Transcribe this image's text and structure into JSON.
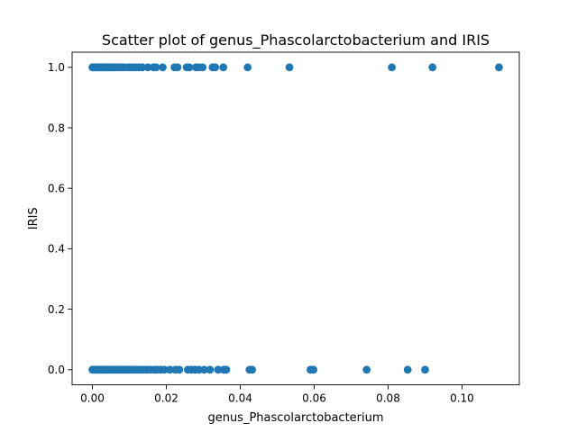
{
  "chart_data": {
    "type": "scatter",
    "title": "Scatter plot of genus_Phascolarctobacterium and IRIS",
    "xlabel": "genus_Phascolarctobacterium",
    "ylabel": "IRIS",
    "xlim": [
      -0.0055,
      0.1155
    ],
    "ylim": [
      -0.05,
      1.05
    ],
    "xticks": [
      0.0,
      0.02,
      0.04,
      0.06,
      0.08,
      0.1
    ],
    "xtick_labels": [
      "0.00",
      "0.02",
      "0.04",
      "0.06",
      "0.08",
      "0.10"
    ],
    "yticks": [
      0.0,
      0.2,
      0.4,
      0.6,
      0.8,
      1.0
    ],
    "ytick_labels": [
      "0.0",
      "0.2",
      "0.4",
      "0.6",
      "0.8",
      "1.0"
    ],
    "grid": false,
    "marker_color": "#1f77b4",
    "points": [
      {
        "x": 0.0,
        "y": 1
      },
      {
        "x": 0.0003,
        "y": 1
      },
      {
        "x": 0.0006,
        "y": 1
      },
      {
        "x": 0.001,
        "y": 1
      },
      {
        "x": 0.0014,
        "y": 1
      },
      {
        "x": 0.0018,
        "y": 1
      },
      {
        "x": 0.0022,
        "y": 1
      },
      {
        "x": 0.0026,
        "y": 1
      },
      {
        "x": 0.003,
        "y": 1
      },
      {
        "x": 0.0034,
        "y": 1
      },
      {
        "x": 0.0038,
        "y": 1
      },
      {
        "x": 0.0042,
        "y": 1
      },
      {
        "x": 0.0046,
        "y": 1
      },
      {
        "x": 0.005,
        "y": 1
      },
      {
        "x": 0.0055,
        "y": 1
      },
      {
        "x": 0.006,
        "y": 1
      },
      {
        "x": 0.0066,
        "y": 1
      },
      {
        "x": 0.0072,
        "y": 1
      },
      {
        "x": 0.0078,
        "y": 1
      },
      {
        "x": 0.0085,
        "y": 1
      },
      {
        "x": 0.0095,
        "y": 1
      },
      {
        "x": 0.0102,
        "y": 1
      },
      {
        "x": 0.011,
        "y": 1
      },
      {
        "x": 0.0118,
        "y": 1
      },
      {
        "x": 0.0125,
        "y": 1
      },
      {
        "x": 0.0135,
        "y": 1
      },
      {
        "x": 0.015,
        "y": 1
      },
      {
        "x": 0.0165,
        "y": 1
      },
      {
        "x": 0.0172,
        "y": 1
      },
      {
        "x": 0.019,
        "y": 1
      },
      {
        "x": 0.0222,
        "y": 1
      },
      {
        "x": 0.023,
        "y": 1
      },
      {
        "x": 0.0255,
        "y": 1
      },
      {
        "x": 0.0262,
        "y": 1
      },
      {
        "x": 0.028,
        "y": 1
      },
      {
        "x": 0.0288,
        "y": 1
      },
      {
        "x": 0.0298,
        "y": 1
      },
      {
        "x": 0.0325,
        "y": 1
      },
      {
        "x": 0.0332,
        "y": 1
      },
      {
        "x": 0.0354,
        "y": 1
      },
      {
        "x": 0.042,
        "y": 1
      },
      {
        "x": 0.0533,
        "y": 1
      },
      {
        "x": 0.081,
        "y": 1
      },
      {
        "x": 0.092,
        "y": 1
      },
      {
        "x": 0.11,
        "y": 1
      },
      {
        "x": 0.0,
        "y": 0
      },
      {
        "x": 0.0004,
        "y": 0
      },
      {
        "x": 0.0008,
        "y": 0
      },
      {
        "x": 0.0012,
        "y": 0
      },
      {
        "x": 0.0016,
        "y": 0
      },
      {
        "x": 0.002,
        "y": 0
      },
      {
        "x": 0.0024,
        "y": 0
      },
      {
        "x": 0.0028,
        "y": 0
      },
      {
        "x": 0.0032,
        "y": 0
      },
      {
        "x": 0.0036,
        "y": 0
      },
      {
        "x": 0.004,
        "y": 0
      },
      {
        "x": 0.0045,
        "y": 0
      },
      {
        "x": 0.005,
        "y": 0
      },
      {
        "x": 0.0055,
        "y": 0
      },
      {
        "x": 0.006,
        "y": 0
      },
      {
        "x": 0.0065,
        "y": 0
      },
      {
        "x": 0.007,
        "y": 0
      },
      {
        "x": 0.0075,
        "y": 0
      },
      {
        "x": 0.008,
        "y": 0
      },
      {
        "x": 0.0085,
        "y": 0
      },
      {
        "x": 0.009,
        "y": 0
      },
      {
        "x": 0.0095,
        "y": 0
      },
      {
        "x": 0.01,
        "y": 0
      },
      {
        "x": 0.0106,
        "y": 0
      },
      {
        "x": 0.0112,
        "y": 0
      },
      {
        "x": 0.0118,
        "y": 0
      },
      {
        "x": 0.0125,
        "y": 0
      },
      {
        "x": 0.0132,
        "y": 0
      },
      {
        "x": 0.014,
        "y": 0
      },
      {
        "x": 0.0148,
        "y": 0
      },
      {
        "x": 0.0158,
        "y": 0
      },
      {
        "x": 0.0168,
        "y": 0
      },
      {
        "x": 0.0175,
        "y": 0
      },
      {
        "x": 0.0185,
        "y": 0
      },
      {
        "x": 0.0195,
        "y": 0
      },
      {
        "x": 0.021,
        "y": 0
      },
      {
        "x": 0.0225,
        "y": 0
      },
      {
        "x": 0.0235,
        "y": 0
      },
      {
        "x": 0.0258,
        "y": 0
      },
      {
        "x": 0.0268,
        "y": 0
      },
      {
        "x": 0.0278,
        "y": 0
      },
      {
        "x": 0.0288,
        "y": 0
      },
      {
        "x": 0.0302,
        "y": 0
      },
      {
        "x": 0.0318,
        "y": 0
      },
      {
        "x": 0.034,
        "y": 0
      },
      {
        "x": 0.0355,
        "y": 0
      },
      {
        "x": 0.0362,
        "y": 0
      },
      {
        "x": 0.0425,
        "y": 0
      },
      {
        "x": 0.0432,
        "y": 0
      },
      {
        "x": 0.059,
        "y": 0
      },
      {
        "x": 0.0598,
        "y": 0
      },
      {
        "x": 0.0742,
        "y": 0
      },
      {
        "x": 0.0853,
        "y": 0
      },
      {
        "x": 0.09,
        "y": 0
      }
    ]
  }
}
